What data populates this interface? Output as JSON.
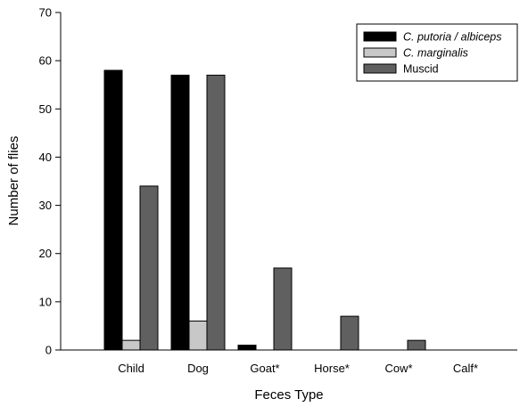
{
  "chart_data": {
    "type": "bar",
    "xlabel": "Feces Type",
    "ylabel": "Number of flies",
    "ylim": [
      0,
      70
    ],
    "yticks": [
      0,
      10,
      20,
      30,
      40,
      50,
      60,
      70
    ],
    "categories": [
      "Child",
      "Dog",
      "Goat*",
      "Horse*",
      "Cow*",
      "Calf*"
    ],
    "series": [
      {
        "name": "C. putoria / albiceps",
        "italic": true,
        "color": "#000000",
        "values": [
          58,
          57,
          1,
          0,
          0,
          0
        ]
      },
      {
        "name": "C. marginalis",
        "italic": true,
        "color": "#c8c8c8",
        "values": [
          2,
          6,
          0,
          0,
          0,
          0
        ]
      },
      {
        "name": "Muscid",
        "italic": false,
        "color": "#606060",
        "values": [
          34,
          57,
          17,
          7,
          2,
          0
        ]
      }
    ],
    "legend": "top-right",
    "grid": false
  }
}
